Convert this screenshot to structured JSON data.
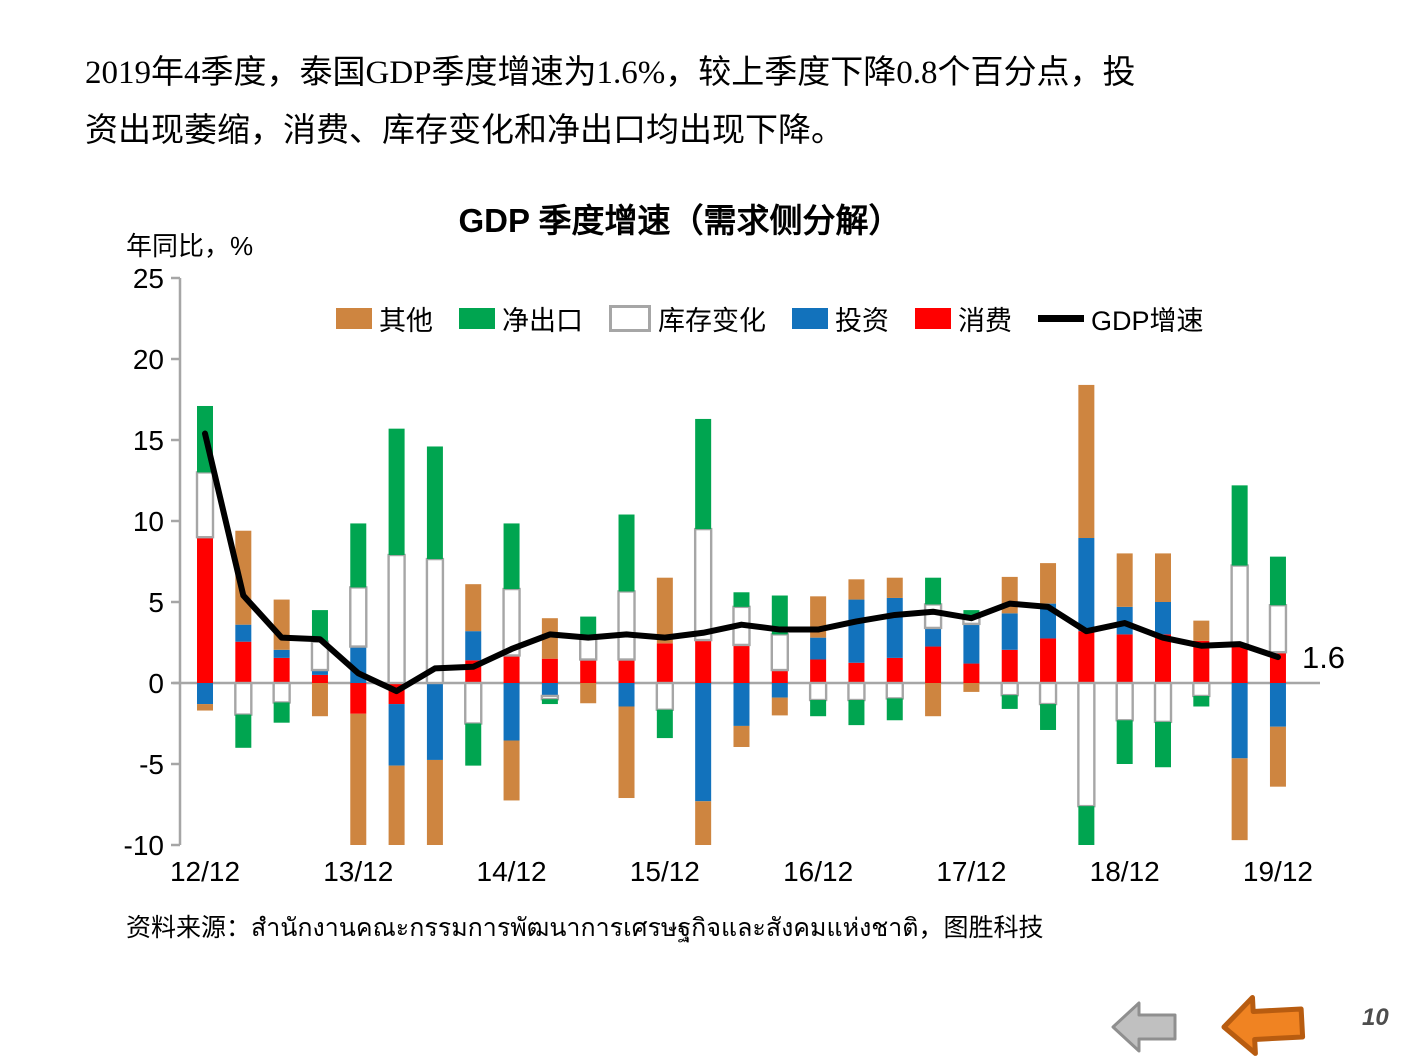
{
  "slide": {
    "headline_lines": [
      "2019年4季度，泰国GDP季度增速为1.6%，较上季度下降0.8个百分点，投",
      "资出现萎缩，消费、库存变化和净出口均出现下降。"
    ],
    "source_line": "资料来源：สำนักงานคณะกรรมการพัฒนาการเศรษฐกิจและสังคมแห่งชาติ，图胜科技",
    "page_number": "10"
  },
  "colors": {
    "consumption_red": "#FF0000",
    "investment_blue": "#1272BC",
    "inventory_white": "#FFFFFF",
    "inventory_border_gray": "#A6A6A6",
    "net_exports_green": "#00A550",
    "other_orange": "#CE8540",
    "gdp_line_black": "#000000",
    "axis_gray": "#A6A6A6",
    "nav_gray_fill": "#C0C0C0",
    "nav_gray_stroke": "#8F8F8F",
    "nav_orange_fill": "#F08322",
    "nav_orange_stroke": "#B85C10"
  },
  "chart_data": {
    "type": "bar",
    "subtype": "stacked-bar-with-line",
    "title": "GDP 季度增速（需求侧分解）",
    "ylabel": "年同比，%",
    "xlabel": "",
    "ylim": [
      -10,
      25
    ],
    "y_ticks": [
      25,
      20,
      15,
      10,
      5,
      0,
      -5,
      -10
    ],
    "grid": "zero-line-only",
    "legend_position": "top-inside",
    "x_tick_labels": [
      "12/12",
      "13/12",
      "14/12",
      "15/12",
      "16/12",
      "17/12",
      "18/12",
      "19/12"
    ],
    "x_tick_every": 4,
    "categories": [
      "12/12",
      "13/03",
      "13/06",
      "13/09",
      "13/12",
      "14/03",
      "14/06",
      "14/09",
      "14/12",
      "15/03",
      "15/06",
      "15/09",
      "15/12",
      "16/03",
      "16/06",
      "16/09",
      "16/12",
      "17/03",
      "17/06",
      "17/09",
      "17/12",
      "18/03",
      "18/06",
      "18/09",
      "18/12",
      "19/03",
      "19/06",
      "19/09",
      "19/12"
    ],
    "series": [
      {
        "name": "消费",
        "color": "#FF0000",
        "values": [
          9.0,
          2.55,
          1.55,
          0.5,
          -1.9,
          -1.3,
          0,
          1.4,
          1.7,
          1.5,
          1.45,
          1.45,
          2.45,
          2.65,
          2.35,
          0.8,
          1.45,
          1.25,
          1.55,
          2.25,
          1.2,
          2.05,
          2.75,
          3.2,
          3.0,
          3.0,
          2.6,
          2.3,
          1.9
        ]
      },
      {
        "name": "投资",
        "color": "#1272BC",
        "values": [
          -1.3,
          1.05,
          0.5,
          0.3,
          2.25,
          -3.8,
          -4.75,
          1.8,
          -3.55,
          -0.8,
          0,
          -1.45,
          0,
          -7.3,
          -2.65,
          -0.9,
          1.35,
          3.9,
          3.7,
          1.15,
          2.45,
          2.25,
          2.15,
          5.75,
          1.7,
          2.0,
          0,
          -4.65,
          -2.7
        ]
      },
      {
        "name": "库存变化",
        "color": "#FFFFFF",
        "border": "#A6A6A6",
        "values": [
          4.0,
          -1.95,
          -1.2,
          1.75,
          3.65,
          7.9,
          7.65,
          -2.5,
          4.1,
          -0.2,
          1.45,
          4.2,
          -1.65,
          6.85,
          2.35,
          2.2,
          -1.05,
          -1.05,
          -0.95,
          1.45,
          0.4,
          -0.75,
          -1.3,
          -7.6,
          -2.3,
          -2.4,
          -0.8,
          4.95,
          2.9
        ]
      },
      {
        "name": "净出口",
        "color": "#00A550",
        "values": [
          4.1,
          -2.05,
          -1.25,
          1.95,
          3.95,
          7.8,
          6.95,
          -2.6,
          4.05,
          -0.3,
          1.2,
          4.75,
          -1.75,
          6.8,
          0.9,
          2.4,
          -1.0,
          -1.55,
          -1.35,
          1.65,
          0.45,
          -0.85,
          -1.6,
          -2.4,
          -2.7,
          -2.8,
          -0.65,
          4.95,
          3.0
        ]
      },
      {
        "name": "其他",
        "color": "#CE8540",
        "values": [
          -0.4,
          5.8,
          3.1,
          -2.05,
          -8.1,
          -11.0,
          -10.0,
          2.9,
          -3.7,
          2.5,
          -1.25,
          -5.65,
          4.05,
          -2.9,
          -1.3,
          -1.1,
          2.55,
          1.25,
          1.25,
          -2.05,
          -0.55,
          2.25,
          2.5,
          9.45,
          3.3,
          3.0,
          1.25,
          -5.05,
          -3.7
        ]
      }
    ],
    "line_series": {
      "name": "GDP增速",
      "color": "#000000",
      "values": [
        15.4,
        5.4,
        2.8,
        2.7,
        0.6,
        -0.5,
        0.9,
        1.0,
        2.1,
        3.0,
        2.8,
        3.0,
        2.8,
        3.1,
        3.6,
        3.3,
        3.3,
        3.8,
        4.2,
        4.4,
        4.0,
        4.9,
        4.7,
        3.2,
        3.7,
        2.8,
        2.3,
        2.4,
        1.6
      ],
      "end_label": "1.6"
    },
    "legend": [
      {
        "label": "其他",
        "type": "box",
        "color": "#CE8540"
      },
      {
        "label": "净出口",
        "type": "box",
        "color": "#00A550"
      },
      {
        "label": "库存变化",
        "type": "box",
        "color": "#FFFFFF",
        "border": "#A6A6A6"
      },
      {
        "label": "投资",
        "type": "box",
        "color": "#1272BC"
      },
      {
        "label": "消费",
        "type": "box",
        "color": "#FF0000"
      },
      {
        "label": "GDP增速",
        "type": "line",
        "color": "#000000"
      }
    ]
  }
}
